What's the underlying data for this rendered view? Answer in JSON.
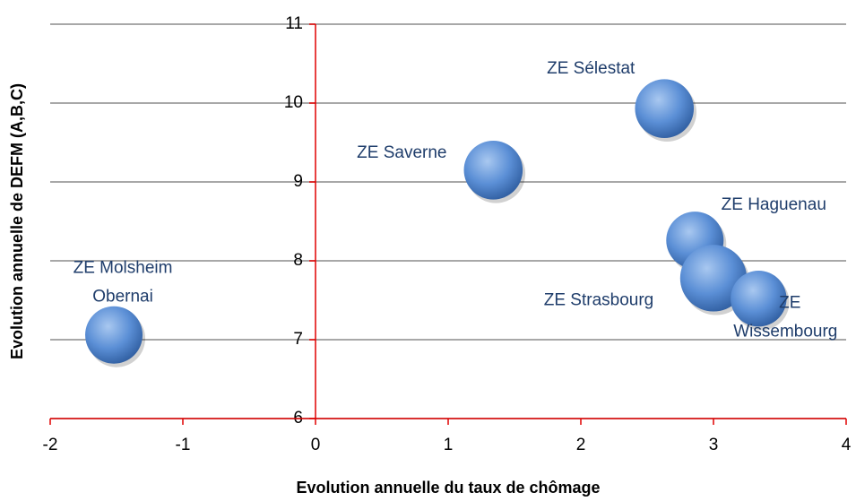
{
  "chart_data": {
    "type": "bubble",
    "x_label": "Evolution annuelle du taux de chômage",
    "y_label": "Evolution annuelle de DEFM (A,B,C)",
    "labels": [
      [
        "ZE Molsheim",
        "Obernai"
      ],
      [
        "ZE Saverne"
      ],
      [
        "ZE Sélestat"
      ],
      [
        "ZE Haguenau"
      ],
      [
        "ZE Strasbourg"
      ],
      [
        "ZE",
        "Wissembourg"
      ]
    ],
    "x": [
      -1.52,
      1.34,
      2.63,
      2.86,
      3.0,
      3.34
    ],
    "values": [
      7.06,
      9.15,
      9.93,
      8.26,
      7.78,
      7.52
    ],
    "sizes": [
      100,
      105,
      105,
      100,
      135,
      95
    ],
    "color": "#4f81bd",
    "xlim": [
      -2,
      4
    ],
    "xticks": [
      -2,
      -1,
      0,
      1,
      2,
      3,
      4
    ],
    "ylim": [
      6,
      11
    ],
    "yticks": [
      6,
      7,
      8,
      9,
      10,
      11
    ],
    "grid": true
  }
}
